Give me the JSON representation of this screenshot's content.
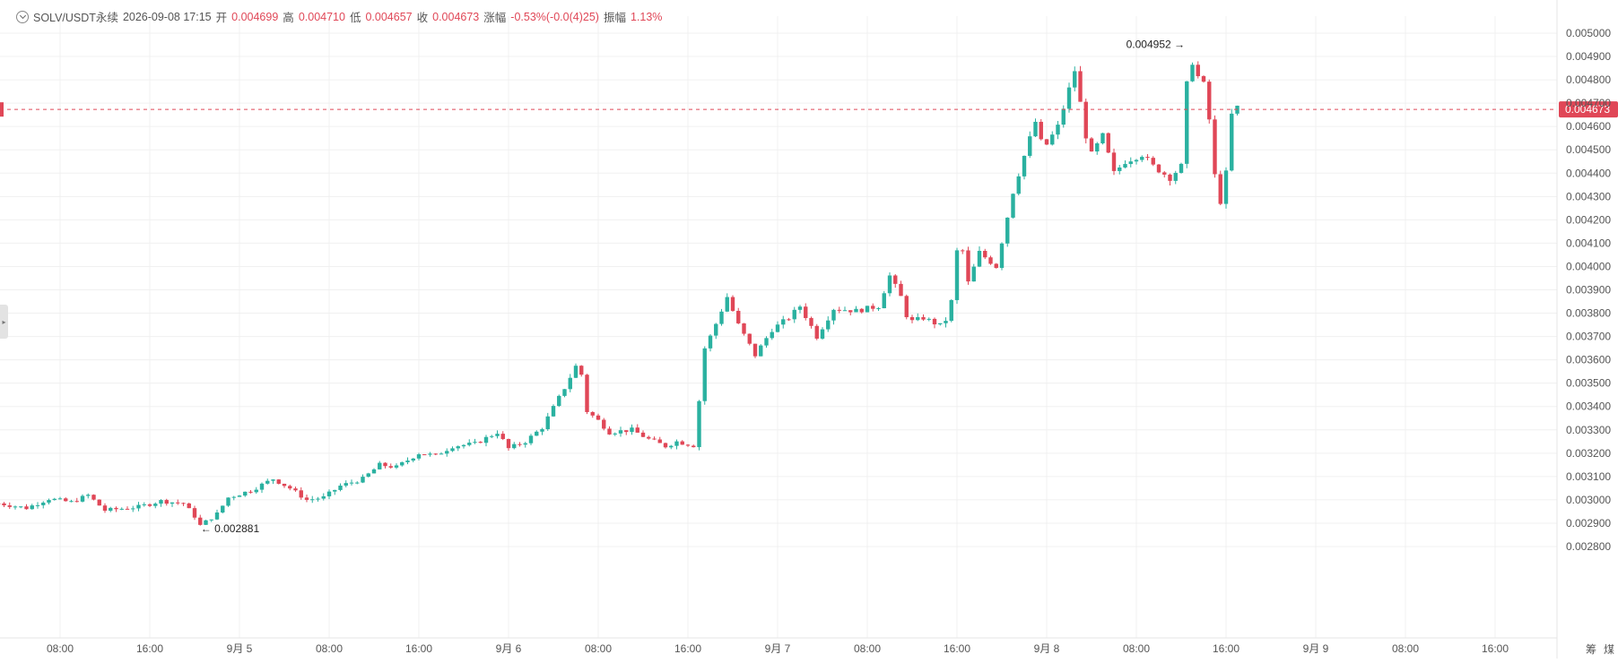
{
  "header": {
    "symbol": "SOLV/USDT永续",
    "datetime": "2026-09-08 17:15",
    "open_label": "开",
    "open_value": "0.004699",
    "high_label": "高",
    "high_value": "0.004710",
    "low_label": "低",
    "low_value": "0.004657",
    "close_label": "收",
    "close_value": "0.004673",
    "change_label": "涨幅",
    "change_value": "-0.53%(-0.0(4)25)",
    "amplitude_label": "振幅",
    "amplitude_value": "1.13%"
  },
  "buttons": {
    "left": "筹",
    "right": "煤"
  },
  "colors": {
    "up": "#2ab1a0",
    "down": "#e04757",
    "grid": "#f0f0f0",
    "axis_text": "#555555"
  },
  "chart_data": {
    "type": "candlestick",
    "ylim": [
      0.00275,
      0.00505
    ],
    "y_ticks": [
      "0.005000",
      "0.004900",
      "0.004800",
      "0.004700",
      "0.004600",
      "0.004500",
      "0.004400",
      "0.004300",
      "0.004200",
      "0.004100",
      "0.004000",
      "0.003900",
      "0.003800",
      "0.003700",
      "0.003600",
      "0.003500",
      "0.003400",
      "0.003300",
      "0.003200",
      "0.003100",
      "0.003000",
      "0.002900",
      "0.002800"
    ],
    "x_ticks": [
      {
        "label": "08:00",
        "hour": 8
      },
      {
        "label": "16:00",
        "hour": 16
      },
      {
        "label": "9月 5",
        "hour": 24
      },
      {
        "label": "08:00",
        "hour": 32
      },
      {
        "label": "16:00",
        "hour": 40
      },
      {
        "label": "9月 6",
        "hour": 48
      },
      {
        "label": "08:00",
        "hour": 56
      },
      {
        "label": "16:00",
        "hour": 64
      },
      {
        "label": "9月 7",
        "hour": 72
      },
      {
        "label": "08:00",
        "hour": 80
      },
      {
        "label": "16:00",
        "hour": 88
      },
      {
        "label": "9月 8",
        "hour": 96
      },
      {
        "label": "08:00",
        "hour": 104
      },
      {
        "label": "16:00",
        "hour": 112
      },
      {
        "label": "9月 9",
        "hour": 120
      },
      {
        "label": "08:00",
        "hour": 128
      },
      {
        "label": "16:00",
        "hour": 136
      }
    ],
    "x_hour_range": [
      2.5,
      142
    ],
    "bar_hours": 0.5,
    "current_price": 0.004673,
    "current_price_label": "0.004673",
    "annotations": [
      {
        "label": "0.002881",
        "hour": 20.3,
        "price": 0.002881,
        "side": "right"
      },
      {
        "label": "0.004952",
        "hour": 108.8,
        "price": 0.004952,
        "side": "left"
      }
    ],
    "close_path": [
      [
        2.5,
        0.002985
      ],
      [
        5,
        0.002965
      ],
      [
        7,
        0.003005
      ],
      [
        9,
        0.00299
      ],
      [
        10.5,
        0.00302
      ],
      [
        12,
        0.002955
      ],
      [
        15,
        0.00297
      ],
      [
        17,
        0.002995
      ],
      [
        19,
        0.002985
      ],
      [
        20,
        0.00293
      ],
      [
        20.5,
        0.00289
      ],
      [
        22,
        0.00294
      ],
      [
        23,
        0.00301
      ],
      [
        25,
        0.00304
      ],
      [
        27,
        0.00309
      ],
      [
        28.5,
        0.00305
      ],
      [
        30,
        0.003
      ],
      [
        31.5,
        0.00301
      ],
      [
        33,
        0.00306
      ],
      [
        35,
        0.00309
      ],
      [
        36.5,
        0.00315
      ],
      [
        38,
        0.00314
      ],
      [
        40,
        0.0032
      ],
      [
        41.5,
        0.00319
      ],
      [
        43,
        0.00323
      ],
      [
        45,
        0.00324
      ],
      [
        47,
        0.00329
      ],
      [
        48,
        0.00322
      ],
      [
        49.5,
        0.00325
      ],
      [
        51,
        0.00331
      ],
      [
        53,
        0.00348
      ],
      [
        54.3,
        0.0036
      ],
      [
        55,
        0.00338
      ],
      [
        56,
        0.00334
      ],
      [
        57,
        0.00329
      ],
      [
        59,
        0.0033
      ],
      [
        60.5,
        0.00326
      ],
      [
        62,
        0.00323
      ],
      [
        63,
        0.00325
      ],
      [
        64.8,
        0.00323
      ],
      [
        65.2,
        0.00362
      ],
      [
        66.2,
        0.00372
      ],
      [
        67.5,
        0.00387
      ],
      [
        68.5,
        0.00375
      ],
      [
        70,
        0.00362
      ],
      [
        71.5,
        0.00373
      ],
      [
        73,
        0.00378
      ],
      [
        74,
        0.00383
      ],
      [
        75.5,
        0.0037
      ],
      [
        77,
        0.00382
      ],
      [
        79,
        0.00381
      ],
      [
        81,
        0.00383
      ],
      [
        82,
        0.00396
      ],
      [
        83,
        0.00387
      ],
      [
        83.7,
        0.00376
      ],
      [
        85,
        0.00378
      ],
      [
        86.8,
        0.00374
      ],
      [
        87.5,
        0.00385
      ],
      [
        88.2,
        0.00415
      ],
      [
        89,
        0.00393
      ],
      [
        90,
        0.00406
      ],
      [
        91.5,
        0.004
      ],
      [
        93,
        0.00432
      ],
      [
        94.3,
        0.00452
      ],
      [
        95,
        0.00462
      ],
      [
        95.7,
        0.0045
      ],
      [
        97,
        0.0046
      ],
      [
        98.5,
        0.00484
      ],
      [
        99.5,
        0.00456
      ],
      [
        100,
        0.00448
      ],
      [
        101,
        0.00456
      ],
      [
        102,
        0.0044
      ],
      [
        103,
        0.00445
      ],
      [
        104.5,
        0.00448
      ],
      [
        105.5,
        0.00443
      ],
      [
        107,
        0.00438
      ],
      [
        108,
        0.00443
      ],
      [
        108.7,
        0.00492
      ],
      [
        109.4,
        0.00482
      ],
      [
        110,
        0.00478
      ],
      [
        110.6,
        0.0046
      ],
      [
        111.3,
        0.00423
      ],
      [
        112,
        0.0044
      ],
      [
        112.6,
        0.0047
      ],
      [
        113.2,
        0.004673
      ]
    ]
  }
}
